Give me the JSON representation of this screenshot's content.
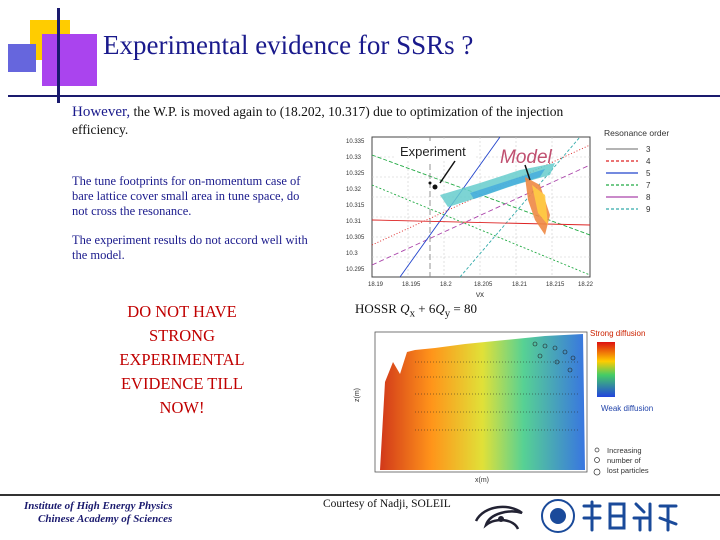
{
  "slide": {
    "title": "Experimental evidence for SSRs ?",
    "intro_lead": "However,",
    "intro_rest": " the W.P. is moved again to (18.202, 10.317) due to optimization of the injection efficiency.",
    "footprint_text": "The tune footprints for on-momentum case of bare lattice cover small area in tune space, do not cross the resonance.",
    "experiment_text": "The experiment results do not accord well with the model.",
    "conclusion_lines": [
      "DO NOT HAVE",
      "STRONG",
      "EXPERIMENTAL",
      "EVIDENCE TILL",
      "NOW!"
    ],
    "hossr_prefix": "HOSSR ",
    "hossr_q": "Q",
    "hossr_x": "x",
    "hossr_mid": " + 6",
    "hossr_y": "y",
    "hossr_suffix": " = 80",
    "courtesy": "Courtesy of Nadji, SOLEIL"
  },
  "footer": {
    "institute_line1": "Institute of High Energy Physics",
    "institute_line2": "Chinese Academy of Sciences"
  },
  "colors": {
    "title": "#1a1a8c",
    "body_text": "#1a1a8c",
    "emphasis": "#c00000",
    "accent_yellow": "#ffcc00",
    "accent_purple": "#aa44ee"
  },
  "top_plot": {
    "label_experiment": "Experiment",
    "label_model": "Model",
    "x_axis_symbol": "νx",
    "x_ticks": [
      "18.19",
      "18.195",
      "18.2",
      "18.205",
      "18.21",
      "18.215",
      "18.22"
    ],
    "y_ticks": [
      "10.335",
      "10.33",
      "10.325",
      "10.32",
      "10.315",
      "10.31",
      "10.305",
      "10.3",
      "10.295"
    ],
    "legend_title": "Resonance order",
    "legend_orders": [
      "3",
      "4",
      "5",
      "7",
      "8",
      "9"
    ],
    "legend_colors": [
      "#888888",
      "#dd2222",
      "#2244cc",
      "#22aa44",
      "#aa44aa",
      "#33aaaa"
    ]
  },
  "bottom_plot": {
    "strong_label": "Strong diffusion",
    "weak_label": "Weak diffusion",
    "lost_label": [
      "Increasing",
      "number of",
      "lost particles"
    ],
    "y_axis_label": "z(m)",
    "x_axis_label": "x(m)"
  }
}
